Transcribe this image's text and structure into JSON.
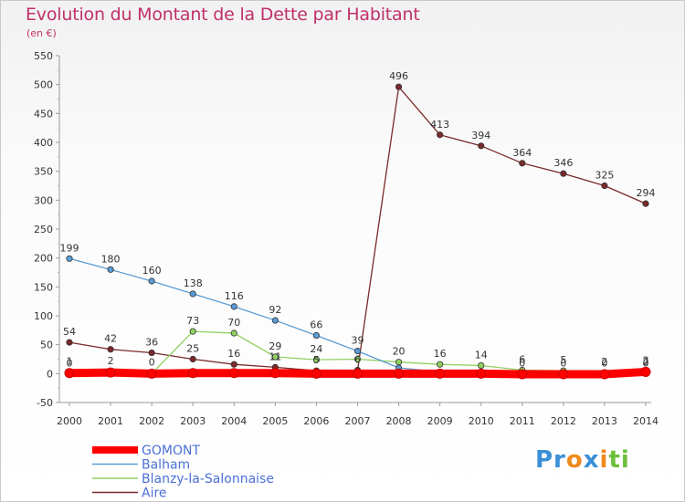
{
  "title": "Evolution du Montant de la Dette par Habitant",
  "unit_label": "(en €)",
  "logo": {
    "text": "Proxiti",
    "colors": [
      "#3b8fd6",
      "#f08a1c",
      "#6cbf3b"
    ]
  },
  "chart_data": {
    "type": "line",
    "title": "Evolution du Montant de la Dette par Habitant",
    "ylabel": "(en €)",
    "xlabel": "",
    "x": [
      2000,
      2001,
      2002,
      2003,
      2004,
      2005,
      2006,
      2007,
      2008,
      2009,
      2010,
      2011,
      2012,
      2013,
      2014
    ],
    "ylim": [
      -50,
      550
    ],
    "yticks": [
      -50,
      0,
      50,
      100,
      150,
      200,
      250,
      300,
      350,
      400,
      450,
      500,
      550
    ],
    "grid": false,
    "legend": "bottom-left",
    "series": [
      {
        "name": "GOMONT",
        "color": "#ff0000",
        "values": [
          1,
          2,
          0,
          1,
          1,
          1,
          0,
          0,
          0,
          0,
          0,
          -1,
          -1,
          -1,
          3
        ],
        "labels": [
          "1",
          "2",
          "0",
          "",
          "",
          "",
          "",
          "",
          "",
          "",
          "",
          "",
          "",
          "",
          "3"
        ]
      },
      {
        "name": "Balham",
        "color": "#5b9bd5",
        "values": [
          199,
          180,
          160,
          138,
          116,
          92,
          66,
          39,
          10,
          3,
          3,
          0,
          0,
          0,
          0
        ],
        "labels": [
          "199",
          "180",
          "160",
          "138",
          "116",
          "92",
          "66",
          "39",
          "",
          "",
          "",
          "0",
          "0",
          "0",
          "0"
        ]
      },
      {
        "name": "Blanzy-la-Salonnaise",
        "color": "#90d060",
        "values": [
          0,
          2,
          0,
          73,
          70,
          29,
          24,
          25,
          20,
          16,
          14,
          6,
          5,
          2,
          2
        ],
        "labels": [
          "0",
          "",
          "",
          "73",
          "70",
          "29",
          "24",
          "",
          "20",
          "16",
          "14",
          "6",
          "5",
          "2",
          "2"
        ]
      },
      {
        "name": "Aire",
        "color": "#7a2a2a",
        "values": [
          54,
          42,
          36,
          25,
          16,
          11,
          5,
          6,
          496,
          413,
          394,
          364,
          346,
          325,
          294
        ],
        "labels": [
          "54",
          "42",
          "36",
          "25",
          "16",
          "11",
          "5",
          "6",
          "496",
          "413",
          "394",
          "364",
          "346",
          "325",
          "294"
        ]
      }
    ]
  }
}
